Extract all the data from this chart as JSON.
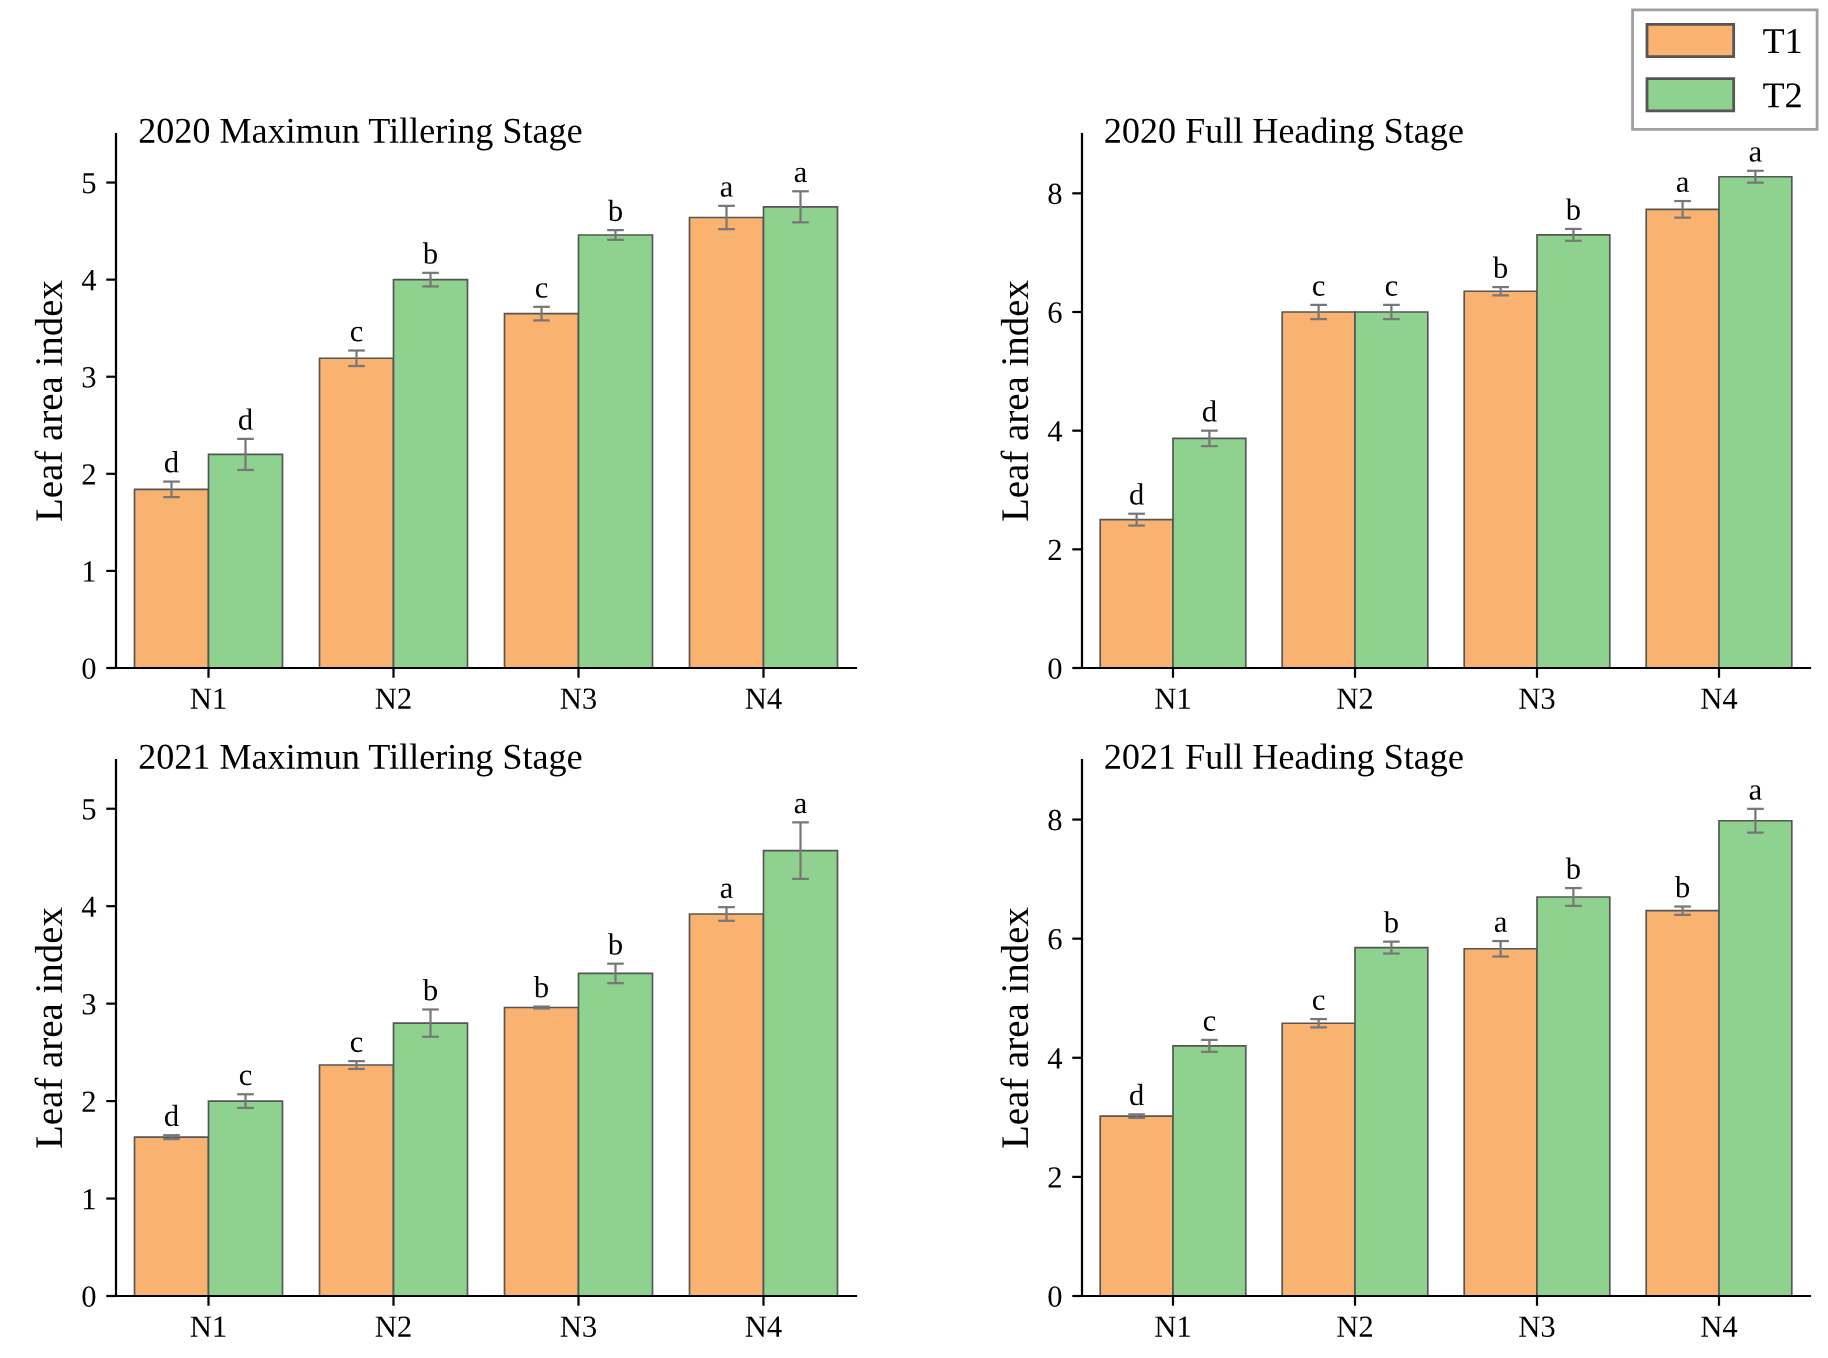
{
  "chart_data": [
    {
      "type": "bar",
      "title": "2020 Maximun Tillering Stage",
      "ylabel": "Leaf area index",
      "categories": [
        "N1",
        "N2",
        "N3",
        "N4"
      ],
      "ylim": [
        0,
        5.5
      ],
      "yticks": [
        0,
        1,
        2,
        3,
        4,
        5
      ],
      "grid": false,
      "legend": "top right",
      "series": [
        {
          "name": "T1",
          "color": "#f9b26f",
          "values": [
            1.84,
            3.19,
            3.65,
            4.64
          ],
          "errors": [
            0.08,
            0.08,
            0.07,
            0.12
          ]
        },
        {
          "name": "T2",
          "color": "#8fd18f",
          "values": [
            2.2,
            4.0,
            4.46,
            4.75
          ],
          "errors": [
            0.16,
            0.07,
            0.05,
            0.16
          ]
        }
      ],
      "annotations": [
        {
          "text": "d",
          "x": "N1",
          "y": 1.84
        },
        {
          "text": "c",
          "x": "N2",
          "y": 3.19
        },
        {
          "text": "c",
          "x": "N3",
          "y": 3.65
        },
        {
          "text": "a",
          "x": "N4",
          "y": 4.64
        },
        {
          "text": "d",
          "x": "N1",
          "y": 2.2
        },
        {
          "text": "b",
          "x": "N2",
          "y": 4.0
        },
        {
          "text": "b",
          "x": "N3",
          "y": 4.46
        },
        {
          "text": "a",
          "x": "N4",
          "y": 4.75
        }
      ]
    },
    {
      "type": "bar",
      "title": "2020 Full Heading Stage",
      "ylabel": "Leaf area index",
      "categories": [
        "N1",
        "N2",
        "N3",
        "N4"
      ],
      "ylim": [
        0,
        9
      ],
      "yticks": [
        0,
        2,
        4,
        6,
        8
      ],
      "grid": false,
      "series": [
        {
          "color": "#f9b26f",
          "values": [
            2.5,
            6.0,
            6.35,
            7.73
          ],
          "errors": [
            0.1,
            0.12,
            0.07,
            0.14
          ]
        },
        {
          "color": "#8fd18f",
          "values": [
            3.87,
            6.0,
            7.3,
            8.28
          ],
          "errors": [
            0.13,
            0.12,
            0.1,
            0.1
          ]
        }
      ],
      "annotations": [
        {
          "text": "d",
          "x": "N1",
          "y": 2.5
        },
        {
          "text": "c",
          "x": "N2",
          "y": 6.0
        },
        {
          "text": "b",
          "x": "N3",
          "y": 6.35
        },
        {
          "text": "a",
          "x": "N4",
          "y": 7.73
        },
        {
          "text": "d",
          "x": "N1",
          "y": 3.87
        },
        {
          "text": "c",
          "x": "N2",
          "y": 6.0
        },
        {
          "text": "b",
          "x": "N3",
          "y": 7.3
        },
        {
          "text": "a",
          "x": "N4",
          "y": 8.28
        }
      ]
    },
    {
      "type": "bar",
      "title": "2021 Maximun Tillering Stage",
      "ylabel": "Leaf area index",
      "categories": [
        "N1",
        "N2",
        "N3",
        "N4"
      ],
      "ylim": [
        0,
        5.5
      ],
      "yticks": [
        0,
        1,
        2,
        3,
        4,
        5
      ],
      "grid": false,
      "series": [
        {
          "color": "#f9b26f",
          "values": [
            1.63,
            2.37,
            2.96,
            3.92
          ],
          "errors": [
            0.02,
            0.04,
            0.01,
            0.07
          ]
        },
        {
          "color": "#8fd18f",
          "values": [
            2.0,
            2.8,
            3.31,
            4.57
          ],
          "errors": [
            0.07,
            0.14,
            0.1,
            0.29
          ]
        }
      ],
      "annotations": [
        {
          "text": "d",
          "x": "N1",
          "y": 1.63
        },
        {
          "text": "c",
          "x": "N2",
          "y": 2.37
        },
        {
          "text": "b",
          "x": "N3",
          "y": 2.96
        },
        {
          "text": "a",
          "x": "N4",
          "y": 3.92
        },
        {
          "text": "c",
          "x": "N1",
          "y": 2.0
        },
        {
          "text": "b",
          "x": "N2",
          "y": 2.8
        },
        {
          "text": "b",
          "x": "N3",
          "y": 3.31
        },
        {
          "text": "a",
          "x": "N4",
          "y": 4.57
        }
      ]
    },
    {
      "type": "bar",
      "title": "2021 Full Heading Stage",
      "ylabel": "Leaf area index",
      "categories": [
        "N1",
        "N2",
        "N3",
        "N4"
      ],
      "ylim": [
        0,
        9
      ],
      "yticks": [
        0,
        2,
        4,
        6,
        8
      ],
      "grid": false,
      "series": [
        {
          "color": "#f9b26f",
          "values": [
            3.02,
            4.58,
            5.83,
            6.47
          ],
          "errors": [
            0.03,
            0.07,
            0.13,
            0.07
          ]
        },
        {
          "color": "#8fd18f",
          "values": [
            4.2,
            5.85,
            6.7,
            7.98
          ],
          "errors": [
            0.1,
            0.1,
            0.15,
            0.2
          ]
        }
      ],
      "annotations": [
        {
          "text": "d",
          "x": "N1",
          "y": 3.02
        },
        {
          "text": "c",
          "x": "N2",
          "y": 4.58
        },
        {
          "text": "a",
          "x": "N3",
          "y": 5.83
        },
        {
          "text": "b",
          "x": "N4",
          "y": 6.47
        },
        {
          "text": "c",
          "x": "N1",
          "y": 4.2
        },
        {
          "text": "b",
          "x": "N2",
          "y": 5.85
        },
        {
          "text": "b",
          "x": "N3",
          "y": 6.7
        },
        {
          "text": "a",
          "x": "N4",
          "y": 7.98
        }
      ]
    }
  ]
}
